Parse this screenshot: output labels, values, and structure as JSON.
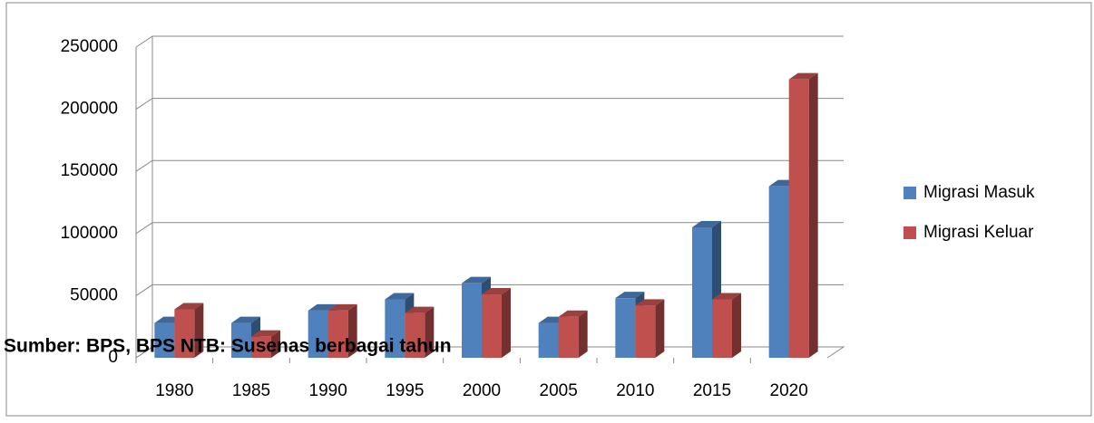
{
  "chart_data": {
    "type": "bar3d",
    "categories": [
      "1980",
      "1985",
      "1990",
      "1995",
      "2000",
      "2005",
      "2010",
      "2015",
      "2020"
    ],
    "series": [
      {
        "name": "Migrasi Masuk",
        "color": "#4f81bd",
        "values": [
          28000,
          28000,
          38000,
          47000,
          60000,
          28000,
          48000,
          105000,
          138000
        ]
      },
      {
        "name": "Migrasi Keluar",
        "color": "#c0504d",
        "values": [
          39000,
          17000,
          38000,
          36000,
          51000,
          33000,
          42000,
          47000,
          224000
        ]
      }
    ],
    "ylim": [
      0,
      250000
    ],
    "yticks": [
      0,
      50000,
      100000,
      150000,
      200000,
      250000
    ],
    "grid": true,
    "legend": "right",
    "source": "Sumber: BPS, BPS NTB: Susenas berbagai tahun"
  }
}
